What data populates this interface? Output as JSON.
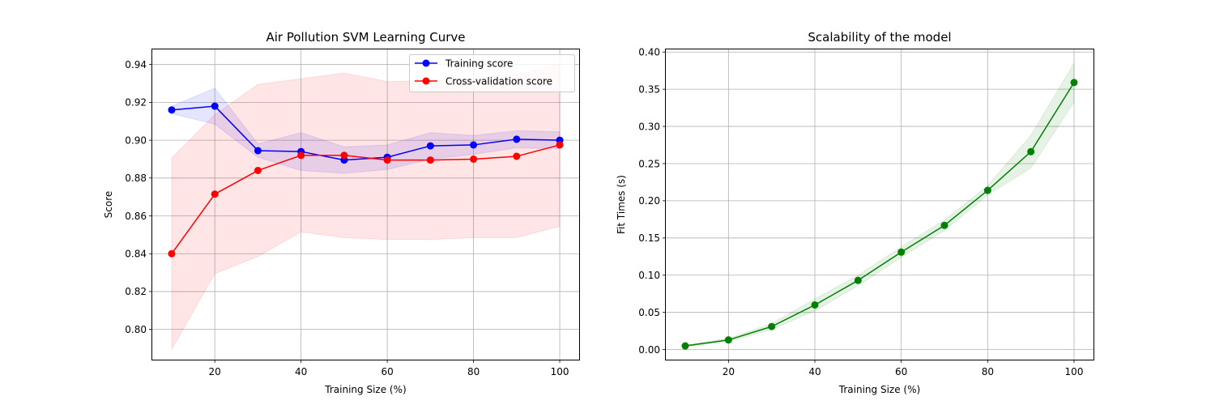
{
  "chart_data": [
    {
      "type": "line",
      "title": "Air Pollution SVM Learning Curve",
      "xlabel": "Training Size (%)",
      "ylabel": "Score",
      "xlim": [
        5.5,
        104.5
      ],
      "ylim": [
        0.784,
        0.948
      ],
      "x_ticks": [
        20,
        40,
        60,
        80,
        100
      ],
      "x_tick_labels": [
        "20",
        "40",
        "60",
        "80",
        "100"
      ],
      "y_ticks": [
        0.8,
        0.82,
        0.84,
        0.86,
        0.88,
        0.9,
        0.92,
        0.94
      ],
      "y_tick_labels": [
        "0.80",
        "0.82",
        "0.84",
        "0.86",
        "0.88",
        "0.90",
        "0.92",
        "0.94"
      ],
      "grid": true,
      "legend_position": "top-right",
      "x": [
        10,
        20,
        30,
        40,
        50,
        60,
        70,
        80,
        90,
        100
      ],
      "series": [
        {
          "name": "Training score",
          "color": "#0000ff",
          "values": [
            0.916,
            0.918,
            0.8945,
            0.894,
            0.8895,
            0.891,
            0.897,
            0.8975,
            0.9005,
            0.9
          ],
          "band_upper": [
            0.918,
            0.9275,
            0.898,
            0.904,
            0.8965,
            0.8975,
            0.904,
            0.9025,
            0.905,
            0.9045
          ],
          "band_lower": [
            0.914,
            0.9085,
            0.891,
            0.884,
            0.8825,
            0.8845,
            0.89,
            0.8925,
            0.896,
            0.8955
          ],
          "band_color": "#0000ff",
          "band_opacity": 0.1
        },
        {
          "name": "Cross-validation score",
          "color": "#ff0000",
          "values": [
            0.84,
            0.8715,
            0.884,
            0.892,
            0.892,
            0.8895,
            0.8895,
            0.89,
            0.8915,
            0.8975
          ],
          "band_upper": [
            0.8905,
            0.9135,
            0.9295,
            0.9325,
            0.9355,
            0.931,
            0.9315,
            0.9315,
            0.9345,
            0.9405
          ],
          "band_lower": [
            0.7895,
            0.8295,
            0.8385,
            0.8515,
            0.8485,
            0.8475,
            0.8475,
            0.8485,
            0.8485,
            0.8545
          ],
          "band_color": "#ff0000",
          "band_opacity": 0.1
        }
      ]
    },
    {
      "type": "line",
      "title": "Scalability of the model",
      "xlabel": "Training Size (%)",
      "ylabel": "Fit Times (s)",
      "xlim": [
        5.5,
        104.5
      ],
      "ylim": [
        -0.0135,
        0.4035
      ],
      "x_ticks": [
        20,
        40,
        60,
        80,
        100
      ],
      "x_tick_labels": [
        "20",
        "40",
        "60",
        "80",
        "100"
      ],
      "y_ticks": [
        0.0,
        0.05,
        0.1,
        0.15,
        0.2,
        0.25,
        0.3,
        0.35,
        0.4
      ],
      "y_tick_labels": [
        "0.00",
        "0.05",
        "0.10",
        "0.15",
        "0.20",
        "0.25",
        "0.30",
        "0.35",
        "0.40"
      ],
      "grid": true,
      "x": [
        10,
        20,
        30,
        40,
        50,
        60,
        70,
        80,
        90,
        100
      ],
      "series": [
        {
          "color": "#008000",
          "values": [
            0.005,
            0.013,
            0.031,
            0.06,
            0.093,
            0.131,
            0.167,
            0.214,
            0.266,
            0.359
          ],
          "band_upper": [
            0.006,
            0.015,
            0.035,
            0.068,
            0.1,
            0.138,
            0.174,
            0.22,
            0.288,
            0.385
          ],
          "band_lower": [
            0.004,
            0.011,
            0.027,
            0.052,
            0.086,
            0.124,
            0.16,
            0.208,
            0.244,
            0.333
          ],
          "band_color": "#008000",
          "band_opacity": 0.1
        }
      ]
    }
  ]
}
